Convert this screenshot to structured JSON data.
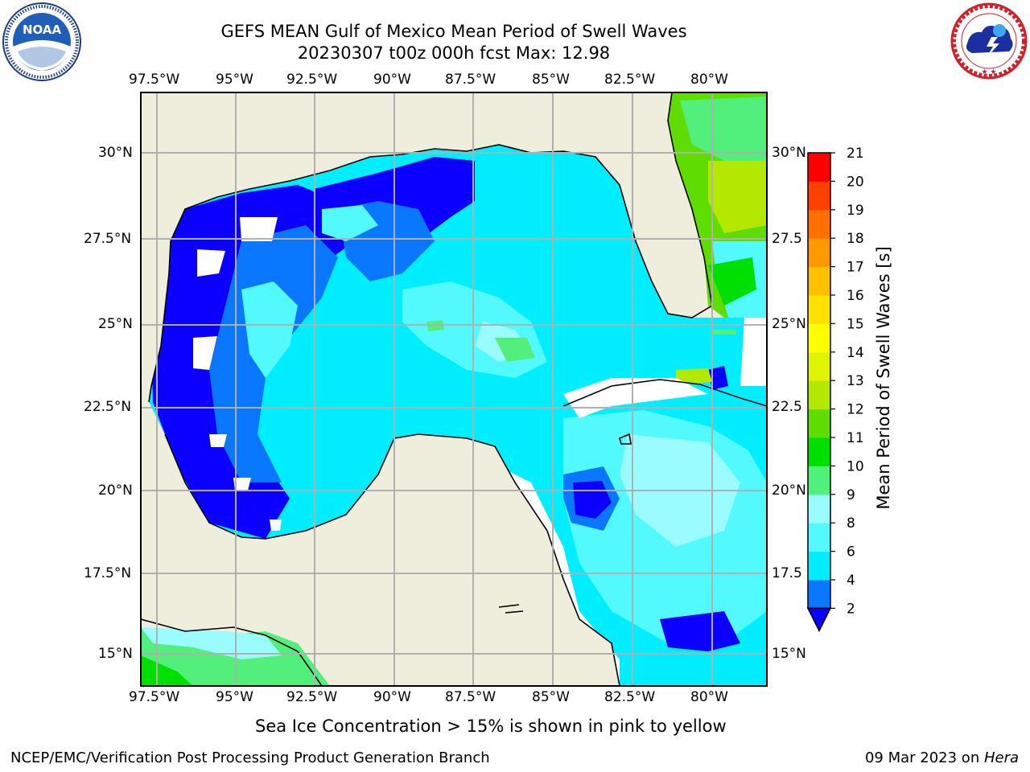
{
  "header": {
    "title": "GEFS MEAN Gulf of Mexico Mean Period of Swell Waves",
    "subtitle": "20230307 t00z 000h fcst   Max: 12.98"
  },
  "logos": {
    "left": {
      "name": "noaa-logo",
      "text": "NOAA",
      "ring_text": "NATIONAL OCEANIC AND ATMOSPHERIC ADMINISTRATION · U.S. DEPARTMENT OF COMMERCE"
    },
    "right": {
      "name": "nws-logo",
      "ring_text": "NATIONAL WEATHER SERVICE"
    }
  },
  "map": {
    "longitude_ticks": [
      "97.5°W",
      "95°W",
      "92.5°W",
      "90°W",
      "87.5°W",
      "85°W",
      "82.5°W",
      "80°W"
    ],
    "latitude_ticks_left": [
      "30°N",
      "27.5°N",
      "25°N",
      "22.5°N",
      "20°N",
      "17.5°N",
      "15°N"
    ],
    "latitude_ticks_right": [
      "30°N",
      "27.5",
      "25°N",
      "22.5",
      "20°N",
      "17.5",
      "15°N"
    ],
    "colors": {
      "land": "#efeedc",
      "ocean_nodata": "#ffffff",
      "grid": "#b0b0b0",
      "coast": "#000000"
    }
  },
  "colorbar": {
    "label": "Mean Period of Swell Waves [s]",
    "tick_labels": [
      "2",
      "4",
      "6",
      "8",
      "9",
      "10",
      "11",
      "12",
      "13",
      "14",
      "15",
      "16",
      "17",
      "18",
      "19",
      "20",
      "21"
    ],
    "colors": [
      "#0b00ff",
      "#0a77ff",
      "#00eeff",
      "#52f9ff",
      "#9bfcff",
      "#52f07a",
      "#00e000",
      "#5fdc00",
      "#b4e800",
      "#dff400",
      "#ffff00",
      "#ffe100",
      "#ffc000",
      "#ff9900",
      "#ff7000",
      "#ff4000",
      "#ff0000"
    ]
  },
  "footer": {
    "ice_note": "Sea Ice Concentration > 15% is shown in pink to yellow",
    "branch": "NCEP/EMC/Verification Post Processing Product Generation Branch",
    "date_prefix": "09 Mar 2023 on ",
    "machine": "Hera"
  }
}
